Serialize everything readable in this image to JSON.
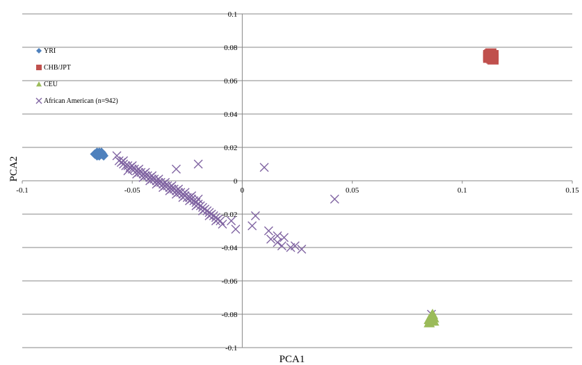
{
  "chart_data": {
    "type": "scatter",
    "xlabel": "PCA1",
    "ylabel": "PCA2",
    "xlim": [
      -0.1,
      0.15
    ],
    "ylim": [
      -0.1,
      0.1
    ],
    "x_ticks": [
      -0.1,
      -0.05,
      0,
      0.05,
      0.1,
      0.15
    ],
    "y_ticks": [
      -0.1,
      -0.08,
      -0.06,
      -0.04,
      -0.02,
      0,
      0.02,
      0.04,
      0.06,
      0.08,
      0.1
    ],
    "x_tick_labels": [
      "-0.1",
      "-0.05",
      "0",
      "0.05",
      "0.1",
      "0.15"
    ],
    "y_tick_labels": [
      "-0.1",
      "-0.08",
      "-0.06",
      "-0.04",
      "-0.02",
      "0",
      "0.02",
      "0.04",
      "0.06",
      "0.08",
      "0.1"
    ],
    "grid": "horizontal",
    "legend_position": "top-left",
    "series": [
      {
        "name": "YRI",
        "marker": "diamond",
        "color": "#4f81bd",
        "points": [
          [
            -0.067,
            0.016
          ],
          [
            -0.066,
            0.015
          ],
          [
            -0.065,
            0.017
          ],
          [
            -0.064,
            0.016
          ],
          [
            -0.066,
            0.017
          ],
          [
            -0.063,
            0.015
          ],
          [
            -0.065,
            0.015
          ],
          [
            -0.064,
            0.017
          ],
          [
            -0.0655,
            0.016
          ],
          [
            -0.0635,
            0.016
          ]
        ]
      },
      {
        "name": "CHB/JPT",
        "marker": "square",
        "color": "#c0504d",
        "points": [
          [
            0.112,
            0.075
          ],
          [
            0.113,
            0.074
          ],
          [
            0.114,
            0.075
          ],
          [
            0.112,
            0.074
          ],
          [
            0.113,
            0.076
          ],
          [
            0.114,
            0.073
          ],
          [
            0.1125,
            0.0755
          ],
          [
            0.1135,
            0.0735
          ]
        ]
      },
      {
        "name": "CEU",
        "marker": "triangle",
        "color": "#9bbb59",
        "points": [
          [
            0.085,
            -0.083
          ],
          [
            0.086,
            -0.081
          ],
          [
            0.087,
            -0.084
          ],
          [
            0.085,
            -0.085
          ],
          [
            0.086,
            -0.082
          ],
          [
            0.087,
            -0.082
          ],
          [
            0.0855,
            -0.0835
          ],
          [
            0.0865,
            -0.08
          ]
        ]
      },
      {
        "name": "African American (n=942)",
        "marker": "x",
        "color": "#8064a2",
        "points": [
          [
            -0.057,
            0.015
          ],
          [
            -0.056,
            0.012
          ],
          [
            -0.055,
            0.011
          ],
          [
            -0.054,
            0.01
          ],
          [
            -0.053,
            0.009
          ],
          [
            -0.052,
            0.009
          ],
          [
            -0.051,
            0.008
          ],
          [
            -0.05,
            0.007
          ],
          [
            -0.049,
            0.007
          ],
          [
            -0.048,
            0.006
          ],
          [
            -0.047,
            0.005
          ],
          [
            -0.046,
            0.005
          ],
          [
            -0.045,
            0.004
          ],
          [
            -0.044,
            0.003
          ],
          [
            -0.043,
            0.003
          ],
          [
            -0.042,
            0.002
          ],
          [
            -0.041,
            0.001
          ],
          [
            -0.04,
            0.001
          ],
          [
            -0.039,
            0.0
          ],
          [
            -0.038,
            -0.001
          ],
          [
            -0.037,
            -0.001
          ],
          [
            -0.036,
            -0.002
          ],
          [
            -0.035,
            -0.003
          ],
          [
            -0.034,
            -0.003
          ],
          [
            -0.033,
            -0.004
          ],
          [
            -0.032,
            -0.005
          ],
          [
            -0.031,
            -0.005
          ],
          [
            -0.03,
            -0.006
          ],
          [
            -0.029,
            -0.007
          ],
          [
            -0.028,
            -0.007
          ],
          [
            -0.027,
            -0.008
          ],
          [
            -0.026,
            -0.009
          ],
          [
            -0.025,
            -0.01
          ],
          [
            -0.024,
            -0.01
          ],
          [
            -0.023,
            -0.011
          ],
          [
            -0.022,
            -0.012
          ],
          [
            -0.021,
            -0.013
          ],
          [
            -0.02,
            -0.014
          ],
          [
            -0.019,
            -0.015
          ],
          [
            -0.018,
            -0.016
          ],
          [
            -0.017,
            -0.017
          ],
          [
            -0.016,
            -0.018
          ],
          [
            -0.015,
            -0.019
          ],
          [
            -0.014,
            -0.02
          ],
          [
            -0.013,
            -0.021
          ],
          [
            -0.012,
            -0.022
          ],
          [
            -0.011,
            -0.023
          ],
          [
            -0.01,
            -0.024
          ],
          [
            -0.054,
            0.012
          ],
          [
            -0.05,
            0.009
          ],
          [
            -0.047,
            0.007
          ],
          [
            -0.044,
            0.005
          ],
          [
            -0.041,
            0.003
          ],
          [
            -0.038,
            0.001
          ],
          [
            -0.035,
            -0.001
          ],
          [
            -0.032,
            -0.003
          ],
          [
            -0.029,
            -0.005
          ],
          [
            -0.026,
            -0.007
          ],
          [
            -0.023,
            -0.009
          ],
          [
            -0.02,
            -0.011
          ],
          [
            -0.052,
            0.006
          ],
          [
            -0.048,
            0.004
          ],
          [
            -0.045,
            0.002
          ],
          [
            -0.042,
            0.0
          ],
          [
            -0.039,
            -0.002
          ],
          [
            -0.036,
            -0.004
          ],
          [
            -0.033,
            -0.006
          ],
          [
            -0.03,
            -0.008
          ],
          [
            -0.027,
            -0.01
          ],
          [
            -0.024,
            -0.012
          ],
          [
            -0.021,
            -0.015
          ],
          [
            -0.018,
            -0.018
          ],
          [
            -0.015,
            -0.021
          ],
          [
            -0.012,
            -0.024
          ],
          [
            -0.009,
            -0.026
          ],
          [
            -0.03,
            0.007
          ],
          [
            -0.02,
            0.01
          ],
          [
            0.01,
            0.008
          ],
          [
            -0.005,
            -0.024
          ],
          [
            -0.003,
            -0.029
          ],
          [
            0.006,
            -0.021
          ],
          [
            0.0045,
            -0.027
          ],
          [
            0.012,
            -0.03
          ],
          [
            0.013,
            -0.035
          ],
          [
            0.016,
            -0.033
          ],
          [
            0.016,
            -0.037
          ],
          [
            0.019,
            -0.034
          ],
          [
            0.018,
            -0.039
          ],
          [
            0.022,
            -0.04
          ],
          [
            0.024,
            -0.039
          ],
          [
            0.027,
            -0.041
          ],
          [
            0.042,
            -0.011
          ],
          [
            0.086,
            -0.08
          ]
        ]
      }
    ]
  }
}
